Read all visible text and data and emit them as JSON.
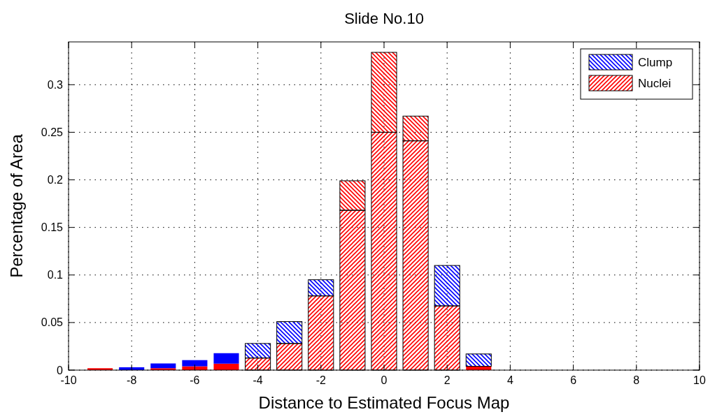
{
  "chart_data": {
    "type": "bar",
    "title": "Slide No.10",
    "xlabel": "Distance to Estimated Focus Map",
    "ylabel": "Percentage of Area",
    "x": [
      -9,
      -8,
      -7,
      -6,
      -5,
      -4,
      -3,
      -2,
      -1,
      0,
      1,
      2,
      3,
      4,
      5,
      6,
      7,
      8,
      9
    ],
    "stacked": true,
    "series": [
      {
        "name": "Nuclei",
        "color": "#ff0000",
        "values": [
          0.002,
          null,
          0.002,
          0.004,
          0.0068,
          0.0127,
          0.028,
          0.078,
          0.168,
          0.25,
          0.241,
          0.0675,
          0.004,
          0,
          0,
          0,
          0,
          0,
          0
        ]
      },
      {
        "name": "Clump",
        "color": "#0000ff",
        "colors": [
          "#0000ff",
          "#0000ff",
          "#0000ff",
          "#0000ff",
          "#0000ff",
          "#0000ff",
          "#0000ff",
          "#0000ff",
          "#ff0000",
          "#ff0000",
          "#ff0000",
          "#0000ff",
          "#0000ff",
          "#0000ff",
          "#0000ff",
          "#0000ff",
          "#0000ff",
          "#0000ff",
          "#0000ff"
        ],
        "values": [
          0,
          0.003,
          0.005,
          0.0065,
          0.011,
          0.0153,
          0.023,
          0.017,
          0.031,
          0.084,
          0.026,
          0.0425,
          0.013,
          0,
          0,
          0,
          0,
          0,
          0
        ]
      }
    ],
    "xlim": [
      -10,
      10
    ],
    "xticks": [
      -10,
      -8,
      -6,
      -4,
      -2,
      0,
      2,
      4,
      6,
      8,
      10
    ],
    "ylim": [
      0,
      0.345
    ],
    "yticks": [
      0,
      0.05,
      0.1,
      0.15,
      0.2,
      0.25,
      0.3
    ],
    "grid": true,
    "legend": "top right"
  }
}
